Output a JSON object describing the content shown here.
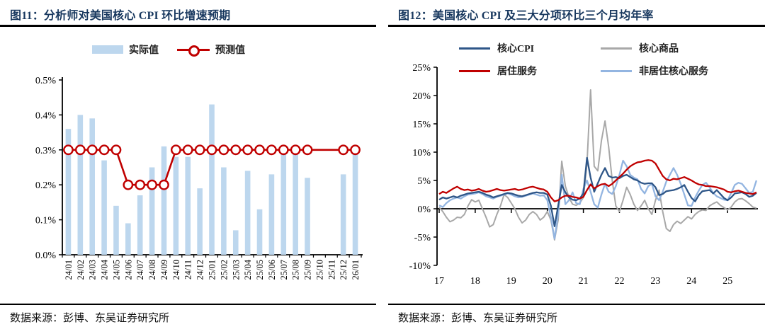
{
  "panels": [
    {
      "title": "图11：分析师对美国核心 CPI 环比增速预期",
      "source": "数据来源：彭博、东吴证券研究所",
      "legend": [
        {
          "label": "实际值",
          "color": "#bdd7ee"
        },
        {
          "label": "预测值",
          "color": "#c00000"
        }
      ],
      "chart_data": {
        "type": "bar",
        "title": "分析师对美国核心 CPI 环比增速预期",
        "unit": "%",
        "ylim": [
          0.0,
          0.5
        ],
        "yticks": [
          "0.0%",
          "0.1%",
          "0.2%",
          "0.3%",
          "0.4%",
          "0.5%"
        ],
        "categories": [
          "24/01",
          "24/02",
          "24/03",
          "24/04",
          "24/05",
          "24/06",
          "24/07",
          "24/08",
          "24/09",
          "24/10",
          "24/11",
          "24/12",
          "25/01",
          "25/02",
          "25/03",
          "25/04",
          "25/05",
          "25/06",
          "25/07",
          "25/08",
          "25/09",
          "25/10",
          "25/11",
          "25/12",
          "26/01"
        ],
        "series": [
          {
            "name": "实际值",
            "kind": "bar",
            "color": "#bdd7ee",
            "values": [
              0.36,
              0.4,
              0.39,
              0.27,
              0.14,
              0.09,
              0.17,
              0.25,
              0.31,
              0.28,
              0.28,
              0.19,
              0.43,
              0.25,
              0.07,
              0.24,
              0.13,
              0.23,
              0.29,
              0.29,
              0.22,
              null,
              null,
              0.23,
              0.29
            ]
          },
          {
            "name": "预测值",
            "kind": "line-marker",
            "color": "#c00000",
            "values": [
              0.3,
              0.3,
              0.3,
              0.3,
              0.3,
              0.2,
              0.2,
              0.2,
              0.2,
              0.3,
              0.3,
              0.3,
              0.3,
              0.3,
              0.3,
              0.3,
              0.3,
              0.3,
              0.3,
              0.3,
              0.3,
              0.3,
              0.3,
              0.3,
              0.3
            ],
            "markers": [
              true,
              true,
              true,
              true,
              true,
              true,
              true,
              true,
              true,
              true,
              true,
              true,
              true,
              true,
              true,
              true,
              true,
              true,
              true,
              true,
              true,
              false,
              false,
              true,
              true
            ]
          }
        ]
      }
    },
    {
      "title": "图12：美国核心 CPI 及三大分项环比三个月均年率",
      "source": "数据来源：彭博、东吴证券研究所",
      "legend": [
        {
          "label": "核心CPI",
          "color": "#2e5688"
        },
        {
          "label": "核心商品",
          "color": "#a8a8a8"
        },
        {
          "label": "居住服务",
          "color": "#c00000"
        },
        {
          "label": "非居住核心服务",
          "color": "#93b5e1"
        }
      ],
      "chart_data": {
        "type": "line",
        "title": "美国核心 CPI 及三大分项环比三个月均年率",
        "unit": "%",
        "ylim": [
          -10,
          25
        ],
        "yticks": [
          "-10%",
          "-5%",
          "0%",
          "5%",
          "10%",
          "15%",
          "20%",
          "25%"
        ],
        "ytick_values": [
          -10,
          -5,
          0,
          5,
          10,
          15,
          20,
          25
        ],
        "xticks": [
          "17",
          "18",
          "19",
          "20",
          "21",
          "22",
          "23",
          "24",
          "25"
        ],
        "xtick_values": [
          17,
          18,
          19,
          20,
          21,
          22,
          23,
          24,
          25
        ],
        "x_start": 17.0,
        "x_step": 0.1,
        "series": [
          {
            "name": "核心商品",
            "color": "#a8a8a8",
            "values": [
              0.3,
              -0.5,
              -1.5,
              -2.3,
              -2.0,
              -1.5,
              -1.6,
              -1.0,
              0.5,
              1.6,
              1.2,
              1.5,
              0.0,
              -1.5,
              -3.2,
              -2.8,
              -1.0,
              0.5,
              2.5,
              2.0,
              1.0,
              0.0,
              -1.5,
              -2.5,
              -2.0,
              -1.0,
              -0.5,
              -1.0,
              -2.0,
              -1.5,
              -0.5,
              -2.0,
              -5.5,
              -2.0,
              8.4,
              4.0,
              2.0,
              0.8,
              0.6,
              1.0,
              2.0,
              8.0,
              21.0,
              7.5,
              6.7,
              12.0,
              15.5,
              11.0,
              5.0,
              0.5,
              -0.5,
              1.5,
              3.8,
              2.5,
              0.8,
              -0.3,
              0.5,
              1.5,
              0.0,
              -1.0,
              1.5,
              3.3,
              -0.5,
              -3.5,
              -4.0,
              -2.8,
              -2.2,
              -2.6,
              -2.0,
              -1.4,
              -1.8,
              -1.0,
              -0.5,
              -0.2,
              -0.3,
              0.5,
              0.9,
              1.2,
              0.6,
              0.2,
              -0.2,
              0.3,
              1.2,
              1.7,
              1.8,
              1.4,
              0.9,
              0.3,
              0.1
            ]
          },
          {
            "name": "非居住核心服务",
            "color": "#93b5e1",
            "values": [
              0.6,
              0.3,
              1.0,
              1.5,
              1.8,
              2.0,
              1.8,
              2.2,
              2.5,
              2.6,
              2.7,
              2.9,
              2.6,
              2.2,
              2.0,
              1.8,
              2.1,
              2.3,
              2.5,
              2.7,
              2.5,
              2.2,
              2.0,
              2.1,
              2.3,
              2.5,
              2.7,
              2.5,
              2.3,
              2.4,
              1.5,
              -1.5,
              -5.3,
              -1.0,
              6.0,
              0.8,
              1.5,
              2.9,
              1.0,
              0.8,
              3.5,
              5.0,
              3.0,
              0.8,
              0.2,
              2.5,
              4.4,
              3.0,
              2.6,
              4.0,
              6.0,
              8.5,
              7.5,
              6.0,
              5.5,
              5.2,
              3.5,
              2.7,
              4.0,
              4.4,
              2.2,
              1.5,
              3.0,
              4.8,
              6.0,
              7.2,
              6.0,
              4.4,
              2.5,
              0.6,
              0.5,
              2.0,
              3.2,
              4.2,
              4.6,
              3.8,
              2.8,
              2.2,
              1.9,
              1.6,
              1.5,
              2.8,
              4.2,
              4.6,
              4.4,
              3.6,
              2.8,
              3.0,
              5.0
            ]
          },
          {
            "name": "核心CPI",
            "color": "#2e5688",
            "values": [
              1.6,
              2.0,
              1.8,
              2.0,
              2.2,
              2.0,
              2.3,
              2.5,
              2.7,
              2.8,
              2.9,
              3.0,
              2.8,
              2.5,
              2.3,
              2.0,
              2.2,
              2.4,
              2.6,
              2.8,
              2.7,
              2.5,
              2.3,
              2.2,
              2.4,
              2.6,
              2.8,
              2.9,
              2.8,
              2.8,
              2.5,
              0.5,
              -3.1,
              0.5,
              4.2,
              2.9,
              2.0,
              1.6,
              1.5,
              1.8,
              2.7,
              9.0,
              5.5,
              3.0,
              4.5,
              6.0,
              7.2,
              5.8,
              5.5,
              5.6,
              5.4,
              5.8,
              6.0,
              5.6,
              5.2,
              5.0,
              4.6,
              4.4,
              4.5,
              4.5,
              3.8,
              2.4,
              2.6,
              3.1,
              3.2,
              3.3,
              3.5,
              3.8,
              4.2,
              3.0,
              1.9,
              1.3,
              2.4,
              3.1,
              3.2,
              3.3,
              2.7,
              3.3,
              2.6,
              1.9,
              1.5,
              2.0,
              2.7,
              2.8,
              2.9,
              2.6,
              2.1,
              2.3,
              2.8
            ]
          },
          {
            "name": "居住服务",
            "color": "#c00000",
            "values": [
              2.6,
              3.0,
              2.8,
              3.2,
              3.6,
              3.9,
              3.5,
              3.3,
              3.4,
              3.2,
              3.3,
              3.5,
              3.2,
              3.0,
              3.1,
              3.3,
              3.5,
              3.3,
              3.2,
              3.3,
              3.4,
              3.5,
              3.3,
              3.4,
              3.6,
              3.8,
              3.9,
              3.7,
              3.5,
              3.4,
              3.0,
              2.0,
              1.3,
              1.5,
              2.0,
              2.3,
              2.3,
              2.1,
              2.0,
              1.8,
              2.1,
              3.3,
              4.3,
              3.6,
              4.0,
              4.3,
              4.4,
              4.0,
              4.4,
              5.0,
              5.6,
              6.2,
              6.9,
              7.5,
              7.9,
              8.2,
              8.3,
              8.5,
              8.6,
              8.5,
              8.0,
              6.9,
              5.8,
              5.2,
              5.0,
              5.3,
              5.2,
              5.4,
              5.6,
              5.3,
              5.0,
              4.6,
              4.3,
              4.2,
              4.0,
              4.0,
              3.9,
              3.8,
              3.6,
              3.4,
              3.0,
              2.9,
              3.1,
              3.2,
              3.0,
              2.8,
              2.7,
              2.6,
              2.9
            ]
          }
        ]
      }
    }
  ]
}
